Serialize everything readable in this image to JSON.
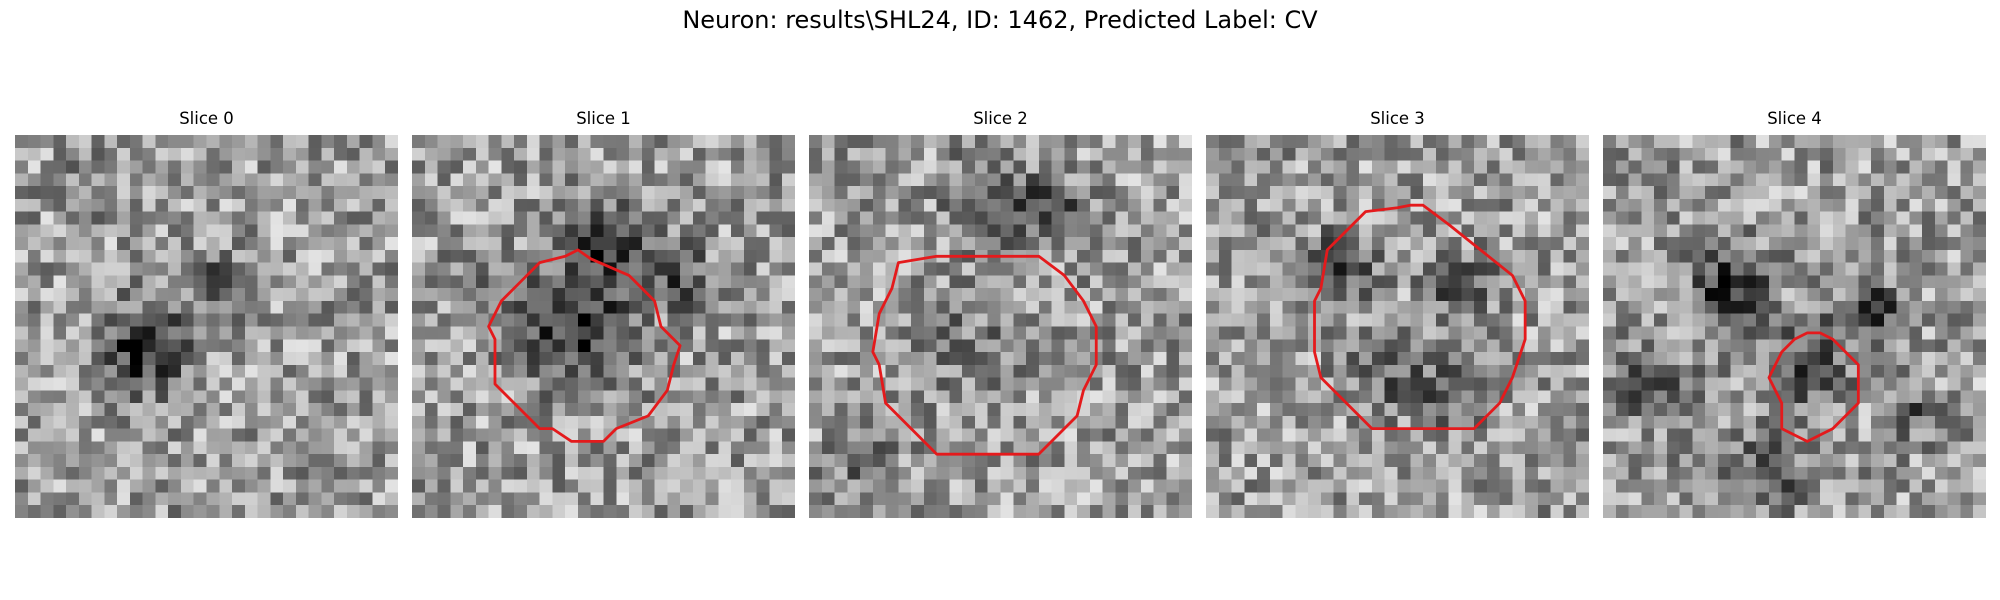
{
  "figure": {
    "suptitle": "Neuron: results\\SHL24, ID: 1462, Predicted Label: CV",
    "slices": [
      {
        "title": "Slice 0",
        "has_contour": false,
        "seed": 11
      },
      {
        "title": "Slice 1",
        "has_contour": true,
        "seed": 23
      },
      {
        "title": "Slice 2",
        "has_contour": true,
        "seed": 37
      },
      {
        "title": "Slice 3",
        "has_contour": true,
        "seed": 53
      },
      {
        "title": "Slice 4",
        "has_contour": true,
        "seed": 71
      }
    ],
    "contour_color": "#e41a1c",
    "colormap": "gray"
  }
}
